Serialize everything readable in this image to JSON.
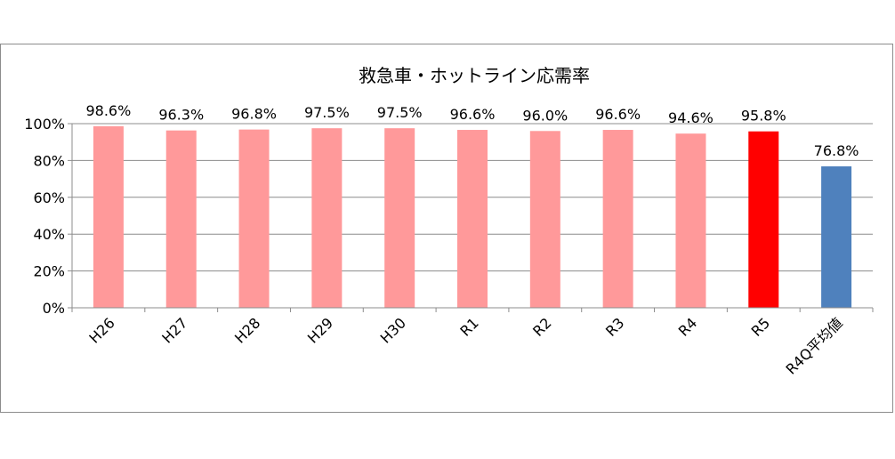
{
  "chart_data": {
    "type": "bar",
    "title": "救急車・ホットライン応需率",
    "categories": [
      "H26",
      "H27",
      "H28",
      "H29",
      "H30",
      "R1",
      "R2",
      "R3",
      "R4",
      "R5",
      "R4Q平均値"
    ],
    "values": [
      98.6,
      96.3,
      96.8,
      97.5,
      97.5,
      96.6,
      96.0,
      96.6,
      94.6,
      95.8,
      76.8
    ],
    "data_labels": [
      "98.6%",
      "96.3%",
      "96.8%",
      "97.5%",
      "97.5%",
      "96.6%",
      "96.0%",
      "96.6%",
      "94.6%",
      "95.8%",
      "76.8%"
    ],
    "bar_colors": [
      "#ff999a",
      "#ff999a",
      "#ff999a",
      "#ff999a",
      "#ff999a",
      "#ff999a",
      "#ff999a",
      "#ff999a",
      "#ff999a",
      "#ff0000",
      "#4f81bd"
    ],
    "y_ticks": [
      "0%",
      "20%",
      "40%",
      "60%",
      "80%",
      "100%"
    ],
    "y_tick_values": [
      0,
      20,
      40,
      60,
      80,
      100
    ],
    "ylim": [
      0,
      100
    ],
    "grid": true,
    "legend": "none",
    "xlabel": "",
    "ylabel": ""
  }
}
